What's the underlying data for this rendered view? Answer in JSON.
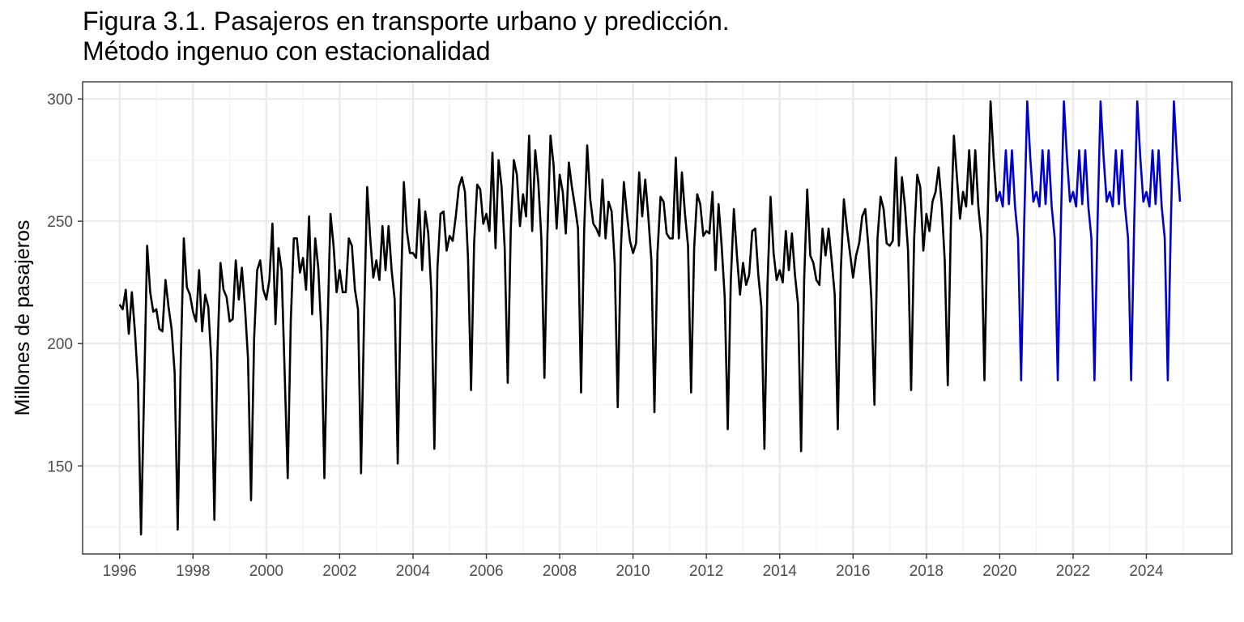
{
  "title_line1": "Figura 3.1. Pasajeros en transporte urbano y predicción.",
  "title_line2": "Método ingenuo con estacionalidad",
  "chart_data": {
    "type": "line",
    "title": "Figura 3.1. Pasajeros en transporte urbano y predicción. Método ingenuo con estacionalidad",
    "xlabel": "",
    "ylabel": "Millones de pasajeros",
    "x_ticks": [
      1996,
      1998,
      2000,
      2002,
      2004,
      2006,
      2008,
      2010,
      2012,
      2014,
      2016,
      2018,
      2020,
      2022,
      2024
    ],
    "y_ticks": [
      150,
      200,
      250,
      300
    ],
    "xlim": [
      1994.99,
      2026.33
    ],
    "ylim": [
      114,
      307
    ],
    "grid": true,
    "legend": "none",
    "colors": {
      "history": "#000000",
      "forecast": "#0000CD",
      "grid_major": "#EBEBEB",
      "grid_minor": "#F2F2F2",
      "panel_border": "#333333"
    },
    "x_start": "1996-01",
    "frequency": "monthly",
    "series": [
      {
        "color": "#000000",
        "values": [
          216,
          214,
          222,
          204,
          221,
          205,
          184,
          122,
          180,
          240,
          221,
          213,
          214,
          206,
          205,
          226,
          215,
          206,
          188,
          124,
          193,
          243,
          223,
          220,
          213,
          209,
          230,
          205,
          220,
          215,
          193,
          128,
          196,
          233,
          222,
          219,
          209,
          210,
          234,
          218,
          231,
          215,
          194,
          136,
          202,
          230,
          234,
          222,
          218,
          226,
          249,
          208,
          239,
          230,
          188,
          145,
          209,
          243,
          243,
          229,
          235,
          222,
          252,
          212,
          243,
          231,
          205,
          145,
          205,
          253,
          240,
          221,
          230,
          221,
          221,
          243,
          240,
          222,
          214,
          147,
          211,
          264,
          243,
          227,
          234,
          226,
          248,
          230,
          248,
          230,
          218,
          151,
          219,
          266,
          246,
          237,
          237,
          235,
          259,
          230,
          254,
          245,
          221,
          157,
          231,
          253,
          254,
          238,
          244,
          242,
          252,
          264,
          268,
          262,
          235,
          181,
          241,
          265,
          263,
          249,
          253,
          246,
          278,
          239,
          275,
          264,
          239,
          184,
          247,
          275,
          269,
          248,
          261,
          252,
          285,
          246,
          279,
          266,
          243,
          186,
          245,
          285,
          273,
          247,
          269,
          262,
          245,
          274,
          264,
          256,
          247,
          180,
          246,
          281,
          259,
          249,
          247,
          244,
          267,
          243,
          258,
          254,
          233,
          174,
          238,
          266,
          253,
          242,
          237,
          241,
          270,
          252,
          267,
          252,
          234,
          172,
          237,
          260,
          258,
          245,
          243,
          243,
          276,
          243,
          270,
          253,
          240,
          180,
          239,
          261,
          257,
          244,
          246,
          245,
          262,
          230,
          257,
          240,
          219,
          165,
          226,
          255,
          236,
          220,
          233,
          224,
          228,
          246,
          247,
          228,
          215,
          157,
          224,
          260,
          237,
          226,
          230,
          225,
          246,
          230,
          245,
          228,
          216,
          156,
          226,
          263,
          236,
          233,
          226,
          224,
          247,
          236,
          247,
          234,
          220,
          165,
          230,
          259,
          247,
          237,
          227,
          236,
          241,
          252,
          255,
          240,
          218,
          175,
          243,
          260,
          255,
          241,
          240,
          242,
          276,
          240,
          268,
          256,
          238,
          181,
          243,
          269,
          264,
          238,
          253,
          246,
          258,
          262,
          272,
          257,
          234,
          183,
          248,
          285,
          268,
          251,
          262,
          256,
          279,
          257,
          279,
          256,
          243,
          185,
          249,
          299,
          276,
          258
        ]
      },
      {
        "color": "#0000CD",
        "name": "",
        "values": [
          262,
          256,
          279,
          257,
          279,
          256,
          243,
          185,
          249,
          299,
          276,
          258,
          262,
          256,
          279,
          257,
          279,
          256,
          243,
          185,
          249,
          299,
          276,
          258,
          262,
          256,
          279,
          257,
          279,
          256,
          243,
          185,
          249,
          299,
          276,
          258,
          262,
          256,
          279,
          257,
          279,
          256,
          243,
          185,
          249,
          299,
          276,
          258,
          262,
          256,
          279,
          257,
          279,
          256,
          243,
          185,
          249,
          299,
          276,
          258
        ]
      }
    ]
  }
}
